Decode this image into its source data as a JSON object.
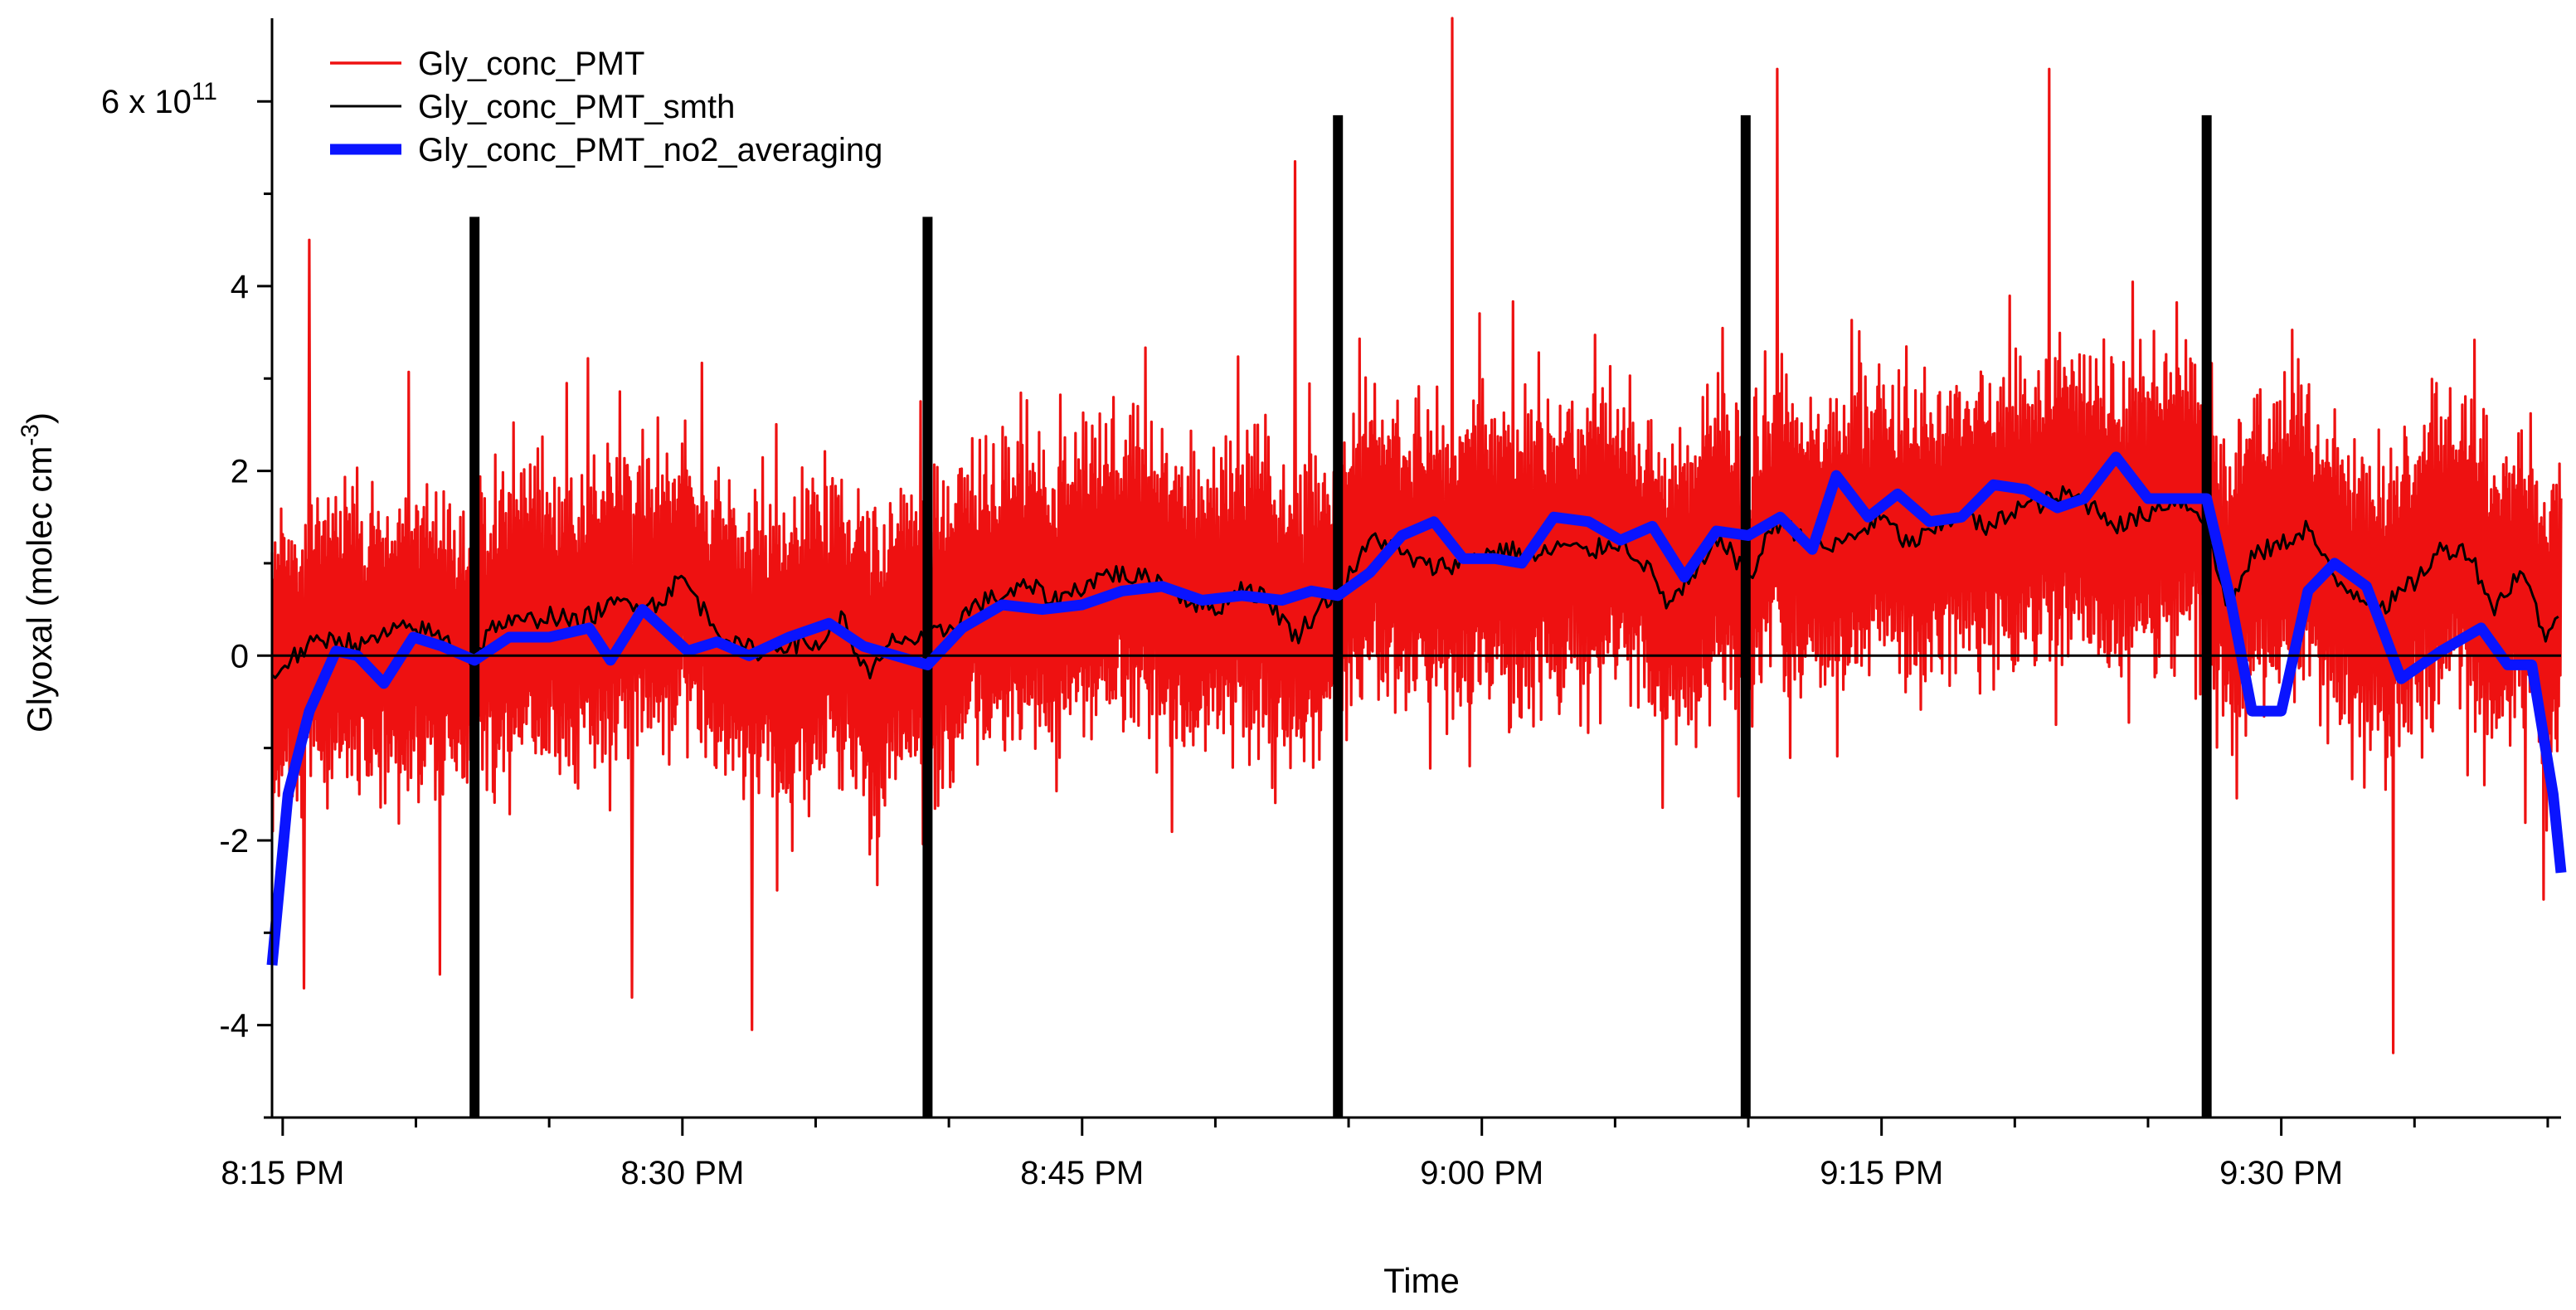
{
  "chart_data": {
    "type": "line",
    "title": "",
    "xlabel": "Time",
    "ylabel_parts": {
      "main": "Glyoxal (molec cm",
      "superscript": "-3",
      "close": ")"
    },
    "x_unit": "minutes after 8:00 PM",
    "x_range": [
      14.6,
      100.5
    ],
    "x_ticks": [
      {
        "minute": 15,
        "label": "8:15 PM"
      },
      {
        "minute": 30,
        "label": "8:30 PM"
      },
      {
        "minute": 45,
        "label": "8:45 PM"
      },
      {
        "minute": 60,
        "label": "9:00 PM"
      },
      {
        "minute": 75,
        "label": "9:15 PM"
      },
      {
        "minute": 90,
        "label": "9:30 PM"
      }
    ],
    "y_unit": "1e11 molec cm^-3",
    "y_range": [
      -5.0,
      6.9
    ],
    "y_ticks": [
      {
        "value": -4,
        "label": "-4"
      },
      {
        "value": -2,
        "label": "-2"
      },
      {
        "value": 0,
        "label": "0"
      },
      {
        "value": 2,
        "label": "2"
      },
      {
        "value": 4,
        "label": "4"
      }
    ],
    "y_top_tick": {
      "value": 6,
      "label_base": "6 x 10",
      "label_exp": "11"
    },
    "zero_line": true,
    "grid": false,
    "legend_position": "top-left",
    "vertical_markers": {
      "color": "#000000",
      "lines": [
        {
          "minute": 22.2,
          "top": 4.75
        },
        {
          "minute": 39.2,
          "top": 4.75
        },
        {
          "minute": 54.6,
          "top": 5.85
        },
        {
          "minute": 69.9,
          "top": 5.85
        },
        {
          "minute": 87.2,
          "top": 5.85
        }
      ]
    },
    "series": [
      {
        "name": "Gly_conc_PMT",
        "color": "#ee1111",
        "kind": "noisy",
        "note": "high-frequency raw signal oscillating about the smoothed trace",
        "approximate_extremes": [
          {
            "minute": 15.8,
            "value": -3.6
          },
          {
            "minute": 16.0,
            "value": 4.5
          },
          {
            "minute": 20.9,
            "value": -3.45
          },
          {
            "minute": 28.1,
            "value": -3.7
          },
          {
            "minute": 32.6,
            "value": -4.05
          },
          {
            "minute": 53.0,
            "value": 5.35
          },
          {
            "minute": 58.9,
            "value": 6.9
          },
          {
            "minute": 71.1,
            "value": 6.35
          },
          {
            "minute": 81.3,
            "value": 6.35
          },
          {
            "minute": 94.2,
            "value": -4.3
          }
        ]
      },
      {
        "name": "Gly_conc_PMT_smth",
        "color": "#000000",
        "kind": "line",
        "x": [
          14.6,
          15.0,
          16.0,
          17.0,
          18.0,
          19.0,
          20.0,
          21.0,
          22.0,
          23.0,
          24.0,
          25.0,
          26.0,
          27.0,
          28.0,
          29.0,
          30.0,
          31.0,
          32.0,
          33.0,
          34.0,
          35.0,
          36.0,
          37.0,
          38.0,
          39.0,
          40.0,
          41.0,
          42.0,
          43.0,
          44.0,
          45.0,
          46.0,
          47.0,
          48.0,
          49.0,
          50.0,
          51.0,
          52.0,
          53.0,
          54.0,
          55.0,
          56.0,
          57.0,
          58.0,
          59.0,
          60.0,
          61.0,
          62.0,
          63.0,
          64.0,
          65.0,
          66.0,
          67.0,
          68.0,
          69.0,
          70.0,
          71.0,
          72.0,
          73.0,
          74.0,
          75.0,
          76.0,
          77.0,
          78.0,
          79.0,
          80.0,
          81.0,
          82.0,
          83.0,
          84.0,
          85.0,
          86.0,
          87.0,
          88.0,
          89.0,
          90.0,
          91.0,
          92.0,
          93.0,
          94.0,
          95.0,
          96.0,
          97.0,
          98.0,
          99.0,
          100.0,
          100.5
        ],
        "values": [
          -0.25,
          -0.1,
          0.1,
          0.2,
          0.1,
          0.25,
          0.3,
          0.2,
          -0.05,
          0.35,
          0.35,
          0.45,
          0.35,
          0.5,
          0.6,
          0.55,
          0.85,
          0.4,
          0.1,
          0.05,
          0.15,
          0.1,
          0.4,
          -0.25,
          0.2,
          0.15,
          0.3,
          0.55,
          0.65,
          0.75,
          0.6,
          0.75,
          0.9,
          0.85,
          0.8,
          0.6,
          0.5,
          0.75,
          0.6,
          0.2,
          0.55,
          0.85,
          1.3,
          1.1,
          0.95,
          1.0,
          1.1,
          1.15,
          1.05,
          1.2,
          1.1,
          1.25,
          1.05,
          0.55,
          0.85,
          1.3,
          0.8,
          1.45,
          1.3,
          1.15,
          1.3,
          1.5,
          1.2,
          1.35,
          1.55,
          1.35,
          1.6,
          1.65,
          1.75,
          1.6,
          1.4,
          1.55,
          1.7,
          1.55,
          0.5,
          1.1,
          1.2,
          1.4,
          0.8,
          0.65,
          0.55,
          0.8,
          1.15,
          1.15,
          0.5,
          0.95,
          0.15,
          0.6
        ]
      },
      {
        "name": "Gly_conc_PMT_no2_averaging",
        "color": "#0a14ff",
        "kind": "line",
        "x": [
          14.6,
          15.2,
          16.0,
          17.0,
          17.8,
          18.8,
          19.9,
          21.0,
          22.2,
          23.5,
          25.0,
          26.5,
          27.3,
          28.5,
          30.2,
          31.3,
          32.5,
          34.0,
          35.5,
          36.8,
          38.0,
          39.2,
          40.5,
          42.0,
          43.5,
          45.0,
          46.5,
          48.0,
          49.5,
          51.0,
          52.5,
          53.6,
          54.6,
          55.8,
          57.0,
          58.2,
          59.3,
          60.5,
          61.5,
          62.7,
          64.0,
          65.2,
          66.4,
          67.6,
          68.8,
          70.0,
          71.2,
          72.4,
          73.3,
          74.5,
          75.6,
          76.8,
          78.0,
          79.2,
          80.4,
          81.6,
          82.6,
          83.8,
          85.0,
          86.2,
          87.2,
          88.1,
          88.9,
          90.0,
          91.0,
          92.0,
          93.2,
          94.5,
          96.0,
          97.5,
          98.5,
          99.4,
          100.2,
          100.5
        ],
        "values": [
          -3.35,
          -1.5,
          -0.6,
          0.05,
          0.0,
          -0.3,
          0.2,
          0.1,
          -0.05,
          0.2,
          0.2,
          0.3,
          -0.05,
          0.5,
          0.05,
          0.15,
          0.0,
          0.2,
          0.35,
          0.1,
          0.0,
          -0.1,
          0.3,
          0.55,
          0.5,
          0.55,
          0.7,
          0.75,
          0.6,
          0.65,
          0.6,
          0.7,
          0.65,
          0.9,
          1.3,
          1.45,
          1.05,
          1.05,
          1.0,
          1.5,
          1.45,
          1.25,
          1.4,
          0.85,
          1.35,
          1.3,
          1.5,
          1.15,
          1.95,
          1.5,
          1.75,
          1.45,
          1.5,
          1.85,
          1.8,
          1.6,
          1.7,
          2.15,
          1.7,
          1.7,
          1.7,
          0.6,
          -0.6,
          -0.6,
          0.7,
          1.0,
          0.75,
          -0.25,
          0.05,
          0.3,
          -0.1,
          -0.1,
          -1.5,
          -2.35
        ]
      }
    ]
  }
}
